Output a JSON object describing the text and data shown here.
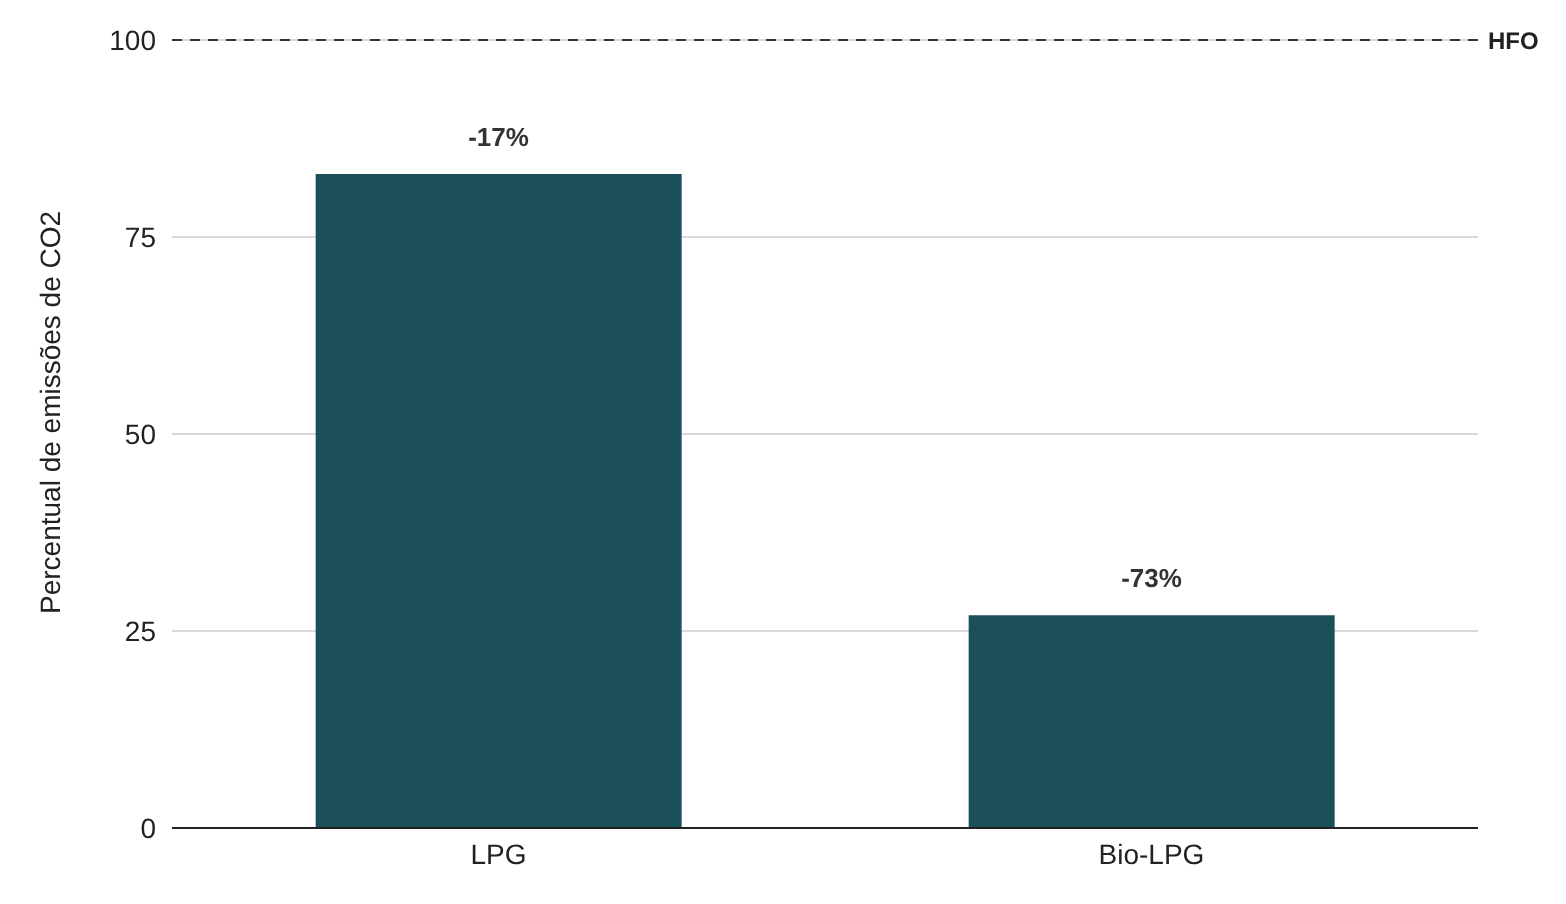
{
  "chart_data": {
    "type": "bar",
    "ylabel": "Percentual de emissões de CO2",
    "categories": [
      "LPG",
      "Bio-LPG"
    ],
    "series": [
      {
        "color": "#1b4f5a",
        "values": [
          83,
          27
        ]
      }
    ],
    "ylim": [
      0,
      100
    ],
    "yticks": [
      0,
      25,
      50,
      75,
      100
    ],
    "grid": "y",
    "annotations": [
      {
        "text": "-17%",
        "x": "LPG",
        "y": 83
      },
      {
        "text": "-73%",
        "x": "Bio-LPG",
        "y": 27
      }
    ],
    "ref_lines": [
      {
        "axis": "y",
        "value": 100,
        "label": "HFO",
        "color": "#333333",
        "line_style": "dashed"
      }
    ]
  }
}
